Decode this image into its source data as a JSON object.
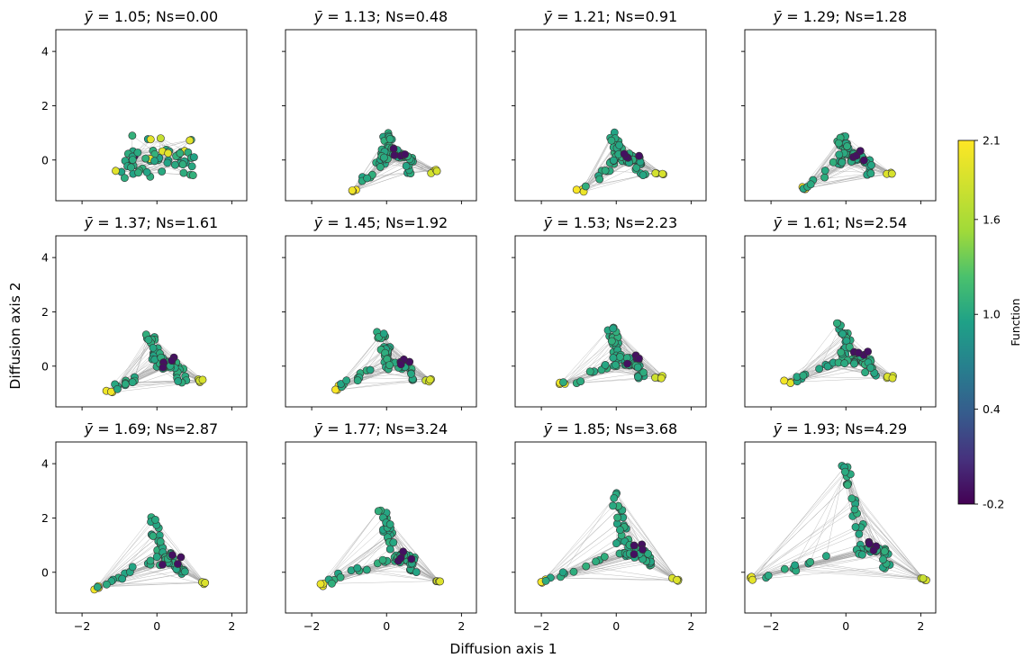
{
  "figure": {
    "xlabel": "Diffusion axis 1",
    "ylabel": "Diffusion axis 2",
    "colorbar": {
      "label": "Function",
      "tick_labels": [
        "-0.2",
        "0.4",
        "1.0",
        "1.6",
        "2.1"
      ],
      "tick_values": [
        -0.2,
        0.4,
        1.0,
        1.6,
        2.1
      ],
      "range": [
        -0.2,
        2.1
      ],
      "colormap": "viridis"
    },
    "edge_color": "#a9a9a9",
    "marker_edge_color": "#333333"
  },
  "chart_data": {
    "type": "scatter",
    "xlim": [
      -2.7,
      2.4
    ],
    "ylim": [
      -1.5,
      4.8
    ],
    "xticks": [
      -2,
      0,
      2
    ],
    "yticks": [
      0,
      2,
      4
    ],
    "grid": false,
    "panels": [
      {
        "title_mean": "1.05",
        "title_ns": "0.00",
        "tips": [
          [
            -1.1,
            -0.4
          ],
          [
            -0.6,
            0.0
          ],
          [
            0.7,
            0.3
          ]
        ],
        "hub": [
          0.0,
          -0.1
        ],
        "spread": 0.7
      },
      {
        "title_mean": "1.13",
        "title_ns": "0.48",
        "tips": [
          [
            -0.85,
            -1.15
          ],
          [
            1.25,
            -0.4
          ],
          [
            0.0,
            0.95
          ]
        ],
        "hub": [
          0.1,
          0.2
        ],
        "spread": 0.5
      },
      {
        "title_mean": "1.21",
        "title_ns": "0.91",
        "tips": [
          [
            -0.95,
            -1.1
          ],
          [
            1.15,
            -0.5
          ],
          [
            -0.1,
            1.0
          ]
        ],
        "hub": [
          0.1,
          0.1
        ],
        "spread": 0.5
      },
      {
        "title_mean": "1.29",
        "title_ns": "1.28",
        "tips": [
          [
            -1.15,
            -1.05
          ],
          [
            1.15,
            -0.5
          ],
          [
            -0.2,
            1.1
          ]
        ],
        "hub": [
          0.05,
          0.1
        ],
        "spread": 0.5
      },
      {
        "title_mean": "1.37",
        "title_ns": "1.61",
        "tips": [
          [
            -1.25,
            -0.9
          ],
          [
            1.15,
            -0.5
          ],
          [
            -0.2,
            1.2
          ]
        ],
        "hub": [
          0.1,
          0.1
        ],
        "spread": 0.55
      },
      {
        "title_mean": "1.45",
        "title_ns": "1.92",
        "tips": [
          [
            -1.35,
            -0.8
          ],
          [
            1.1,
            -0.5
          ],
          [
            -0.2,
            1.35
          ]
        ],
        "hub": [
          0.1,
          0.1
        ],
        "spread": 0.55
      },
      {
        "title_mean": "1.53",
        "title_ns": "2.23",
        "tips": [
          [
            -1.45,
            -0.7
          ],
          [
            1.15,
            -0.45
          ],
          [
            -0.15,
            1.5
          ]
        ],
        "hub": [
          0.1,
          0.2
        ],
        "spread": 0.55
      },
      {
        "title_mean": "1.61",
        "title_ns": "2.54",
        "tips": [
          [
            -1.55,
            -0.6
          ],
          [
            1.2,
            -0.45
          ],
          [
            -0.15,
            1.75
          ]
        ],
        "hub": [
          0.1,
          0.3
        ],
        "spread": 0.6
      },
      {
        "title_mean": "1.69",
        "title_ns": "2.87",
        "tips": [
          [
            -1.65,
            -0.55
          ],
          [
            1.25,
            -0.4
          ],
          [
            -0.15,
            2.1
          ]
        ],
        "hub": [
          0.1,
          0.5
        ],
        "spread": 0.6
      },
      {
        "title_mean": "1.77",
        "title_ns": "3.24",
        "tips": [
          [
            -1.8,
            -0.45
          ],
          [
            1.4,
            -0.35
          ],
          [
            -0.15,
            2.5
          ]
        ],
        "hub": [
          0.2,
          0.6
        ],
        "spread": 0.65
      },
      {
        "title_mean": "1.85",
        "title_ns": "3.68",
        "tips": [
          [
            -2.0,
            -0.35
          ],
          [
            1.6,
            -0.3
          ],
          [
            -0.1,
            3.1
          ]
        ],
        "hub": [
          0.3,
          0.8
        ],
        "spread": 0.7
      },
      {
        "title_mean": "1.93",
        "title_ns": "4.29",
        "tips": [
          [
            -2.45,
            -0.25
          ],
          [
            2.05,
            -0.25
          ],
          [
            -0.1,
            4.3
          ]
        ],
        "hub": [
          0.5,
          0.9
        ],
        "spread": 0.75
      }
    ]
  }
}
